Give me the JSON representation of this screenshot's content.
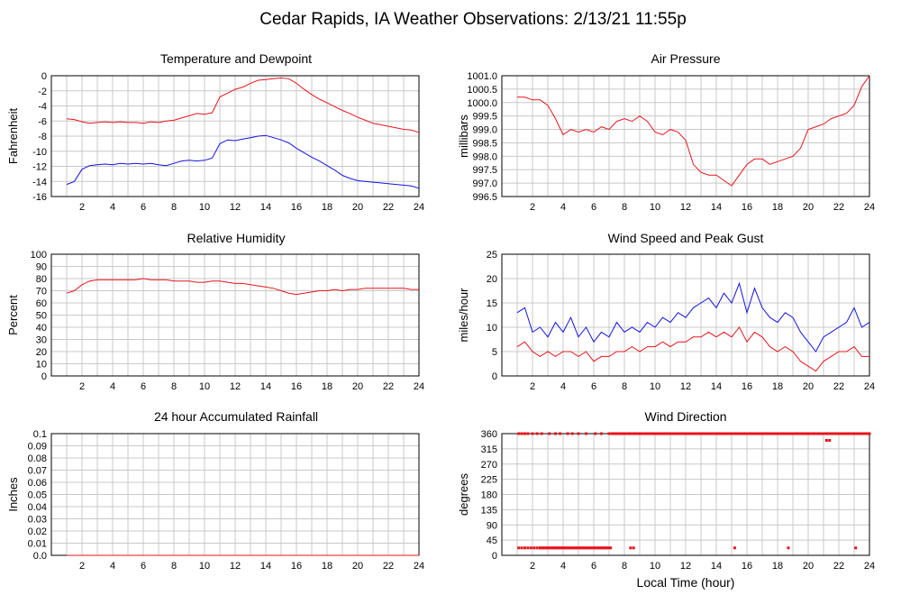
{
  "page": {
    "title": "Cedar Rapids, IA Weather Observations: 2/13/21 11:55p",
    "xlabel": "Local Time (hour)"
  },
  "colors": {
    "red": "#e8141c",
    "blue": "#1414e0"
  },
  "chart_data": [
    {
      "id": "temp",
      "type": "line",
      "title": "Temperature and Dewpoint",
      "ylabel": "Fahrenheit",
      "xlim": [
        0,
        24
      ],
      "ylim": [
        -16,
        0
      ],
      "xticks": [
        2,
        4,
        6,
        8,
        10,
        12,
        14,
        16,
        18,
        20,
        22,
        24
      ],
      "yticks": [
        -16,
        -14,
        -12,
        -10,
        -8,
        -6,
        -4,
        -2,
        0
      ],
      "grid": true,
      "series": [
        {
          "color": "red",
          "x": [
            1,
            1.5,
            2,
            2.5,
            3,
            3.5,
            4,
            4.5,
            5,
            5.5,
            6,
            6.5,
            7,
            7.5,
            8,
            8.5,
            9,
            9.5,
            10,
            10.5,
            11,
            11.5,
            12,
            12.5,
            13,
            13.5,
            14,
            14.5,
            15,
            15.5,
            16,
            16.5,
            17,
            17.5,
            18,
            18.5,
            19,
            19.5,
            20,
            20.5,
            21,
            21.5,
            22,
            22.5,
            23,
            23.5,
            24
          ],
          "y": [
            -5.7,
            -5.8,
            -6.1,
            -6.3,
            -6.2,
            -6.1,
            -6.2,
            -6.1,
            -6.2,
            -6.2,
            -6.3,
            -6.1,
            -6.2,
            -6.0,
            -5.9,
            -5.6,
            -5.3,
            -5.0,
            -5.1,
            -4.9,
            -2.8,
            -2.3,
            -1.8,
            -1.5,
            -1.0,
            -0.6,
            -0.5,
            -0.4,
            -0.3,
            -0.4,
            -1.0,
            -1.8,
            -2.5,
            -3.1,
            -3.6,
            -4.1,
            -4.6,
            -5.0,
            -5.5,
            -5.9,
            -6.3,
            -6.5,
            -6.7,
            -6.9,
            -7.1,
            -7.2,
            -7.5
          ]
        },
        {
          "color": "blue",
          "x": [
            1,
            1.5,
            2,
            2.5,
            3,
            3.5,
            4,
            4.5,
            5,
            5.5,
            6,
            6.5,
            7,
            7.5,
            8,
            8.5,
            9,
            9.5,
            10,
            10.5,
            11,
            11.5,
            12,
            12.5,
            13,
            13.5,
            14,
            14.5,
            15,
            15.5,
            16,
            16.5,
            17,
            17.5,
            18,
            18.5,
            19,
            19.5,
            20,
            20.5,
            21,
            21.5,
            22,
            22.5,
            23,
            23.5,
            24
          ],
          "y": [
            -14.4,
            -14.0,
            -12.4,
            -11.9,
            -11.8,
            -11.7,
            -11.8,
            -11.6,
            -11.7,
            -11.6,
            -11.7,
            -11.6,
            -11.8,
            -11.9,
            -11.6,
            -11.3,
            -11.2,
            -11.3,
            -11.2,
            -10.9,
            -9.0,
            -8.5,
            -8.6,
            -8.4,
            -8.2,
            -8.0,
            -7.9,
            -8.2,
            -8.5,
            -8.9,
            -9.6,
            -10.2,
            -10.8,
            -11.3,
            -11.9,
            -12.5,
            -13.2,
            -13.6,
            -13.9,
            -14.0,
            -14.1,
            -14.2,
            -14.3,
            -14.4,
            -14.5,
            -14.6,
            -14.9
          ]
        }
      ]
    },
    {
      "id": "pressure",
      "type": "line",
      "title": "Air Pressure",
      "ylabel": "millibars",
      "xlim": [
        0,
        24
      ],
      "ylim": [
        996.5,
        1001.0
      ],
      "xticks": [
        2,
        4,
        6,
        8,
        10,
        12,
        14,
        16,
        18,
        20,
        22,
        24
      ],
      "yticks": [
        "996.5",
        "997.0",
        "997.5",
        "998.0",
        "998.5",
        "999.0",
        "999.5",
        "1000.0",
        "1000.5",
        "1001.0"
      ],
      "grid": true,
      "series": [
        {
          "color": "red",
          "x": [
            1,
            1.5,
            2,
            2.5,
            3,
            3.5,
            4,
            4.5,
            5,
            5.5,
            6,
            6.5,
            7,
            7.5,
            8,
            8.5,
            9,
            9.5,
            10,
            10.5,
            11,
            11.5,
            12,
            12.5,
            13,
            13.5,
            14,
            14.5,
            15,
            15.5,
            16,
            16.5,
            17,
            17.5,
            18,
            18.5,
            19,
            19.5,
            20,
            20.5,
            21,
            21.5,
            22,
            22.5,
            23,
            23.5,
            24
          ],
          "y": [
            1000.2,
            1000.2,
            1000.1,
            1000.1,
            999.9,
            999.4,
            998.8,
            999.0,
            998.9,
            999.0,
            998.9,
            999.1,
            999.0,
            999.3,
            999.4,
            999.3,
            999.5,
            999.3,
            998.9,
            998.8,
            999.0,
            998.9,
            998.6,
            997.7,
            997.4,
            997.3,
            997.3,
            997.1,
            996.9,
            997.3,
            997.7,
            997.9,
            997.9,
            997.7,
            997.8,
            997.9,
            998.0,
            998.3,
            999.0,
            999.1,
            999.2,
            999.4,
            999.5,
            999.6,
            999.9,
            1000.6,
            1001.0
          ]
        }
      ]
    },
    {
      "id": "humidity",
      "type": "line",
      "title": "Relative Humidity",
      "ylabel": "Percent",
      "xlim": [
        0,
        24
      ],
      "ylim": [
        0,
        100
      ],
      "xticks": [
        2,
        4,
        6,
        8,
        10,
        12,
        14,
        16,
        18,
        20,
        22,
        24
      ],
      "yticks": [
        0,
        10,
        20,
        30,
        40,
        50,
        60,
        70,
        80,
        90,
        100
      ],
      "grid": true,
      "series": [
        {
          "color": "red",
          "x": [
            1,
            1.5,
            2,
            2.5,
            3,
            3.5,
            4,
            4.5,
            5,
            5.5,
            6,
            6.5,
            7,
            7.5,
            8,
            8.5,
            9,
            9.5,
            10,
            10.5,
            11,
            11.5,
            12,
            12.5,
            13,
            13.5,
            14,
            14.5,
            15,
            15.5,
            16,
            16.5,
            17,
            17.5,
            18,
            18.5,
            19,
            19.5,
            20,
            20.5,
            21,
            21.5,
            22,
            22.5,
            23,
            23.5,
            24
          ],
          "y": [
            68,
            70,
            75,
            78,
            79,
            79,
            79,
            79,
            79,
            79,
            80,
            79,
            79,
            79,
            78,
            78,
            78,
            77,
            77,
            78,
            78,
            77,
            76,
            76,
            75,
            74,
            73,
            72,
            70,
            68,
            67,
            68,
            69,
            70,
            70,
            71,
            70,
            71,
            71,
            72,
            72,
            72,
            72,
            72,
            72,
            71,
            71
          ]
        }
      ]
    },
    {
      "id": "wind",
      "type": "line",
      "title": "Wind Speed and Peak Gust",
      "ylabel": "miles/hour",
      "xlim": [
        0,
        24
      ],
      "ylim": [
        0,
        25
      ],
      "xticks": [
        2,
        4,
        6,
        8,
        10,
        12,
        14,
        16,
        18,
        20,
        22,
        24
      ],
      "yticks": [
        0,
        5,
        10,
        15,
        20,
        25
      ],
      "grid": true,
      "series": [
        {
          "color": "blue",
          "x": [
            1,
            1.5,
            2,
            2.5,
            3,
            3.5,
            4,
            4.5,
            5,
            5.5,
            6,
            6.5,
            7,
            7.5,
            8,
            8.5,
            9,
            9.5,
            10,
            10.5,
            11,
            11.5,
            12,
            12.5,
            13,
            13.5,
            14,
            14.5,
            15,
            15.5,
            16,
            16.5,
            17,
            17.5,
            18,
            18.5,
            19,
            19.5,
            20,
            20.5,
            21,
            21.5,
            22,
            22.5,
            23,
            23.5,
            24
          ],
          "y": [
            13,
            14,
            9,
            10,
            8,
            11,
            9,
            12,
            8,
            10,
            7,
            9,
            8,
            11,
            9,
            10,
            9,
            11,
            10,
            12,
            11,
            13,
            12,
            14,
            15,
            16,
            14,
            17,
            15,
            19,
            13,
            18,
            14,
            12,
            11,
            13,
            12,
            9,
            7,
            5,
            8,
            9,
            10,
            11,
            14,
            10,
            11
          ]
        },
        {
          "color": "red",
          "x": [
            1,
            1.5,
            2,
            2.5,
            3,
            3.5,
            4,
            4.5,
            5,
            5.5,
            6,
            6.5,
            7,
            7.5,
            8,
            8.5,
            9,
            9.5,
            10,
            10.5,
            11,
            11.5,
            12,
            12.5,
            13,
            13.5,
            14,
            14.5,
            15,
            15.5,
            16,
            16.5,
            17,
            17.5,
            18,
            18.5,
            19,
            19.5,
            20,
            20.5,
            21,
            21.5,
            22,
            22.5,
            23,
            23.5,
            24
          ],
          "y": [
            6,
            7,
            5,
            4,
            5,
            4,
            5,
            5,
            4,
            5,
            3,
            4,
            4,
            5,
            5,
            6,
            5,
            6,
            6,
            7,
            6,
            7,
            7,
            8,
            8,
            9,
            8,
            9,
            8,
            10,
            7,
            9,
            8,
            6,
            5,
            6,
            5,
            3,
            2,
            1,
            3,
            4,
            5,
            5,
            6,
            4,
            4
          ]
        }
      ]
    },
    {
      "id": "rain",
      "type": "line",
      "title": "24 hour Accumulated Rainfall",
      "ylabel": "Inches",
      "xlim": [
        0,
        24
      ],
      "ylim": [
        0,
        0.1
      ],
      "xticks": [
        2,
        4,
        6,
        8,
        10,
        12,
        14,
        16,
        18,
        20,
        22,
        24
      ],
      "yticks": [
        "0.0",
        "0.01",
        "0.02",
        "0.03",
        "0.04",
        "0.05",
        "0.06",
        "0.07",
        "0.08",
        "0.09",
        "0.1"
      ],
      "grid": true,
      "series": [
        {
          "color": "red",
          "x": [
            1,
            24
          ],
          "y": [
            0,
            0
          ]
        }
      ]
    },
    {
      "id": "direction",
      "type": "scatter",
      "title": "Wind Direction",
      "ylabel": "degrees",
      "xlim": [
        0,
        24
      ],
      "ylim": [
        0,
        360
      ],
      "xticks": [
        2,
        4,
        6,
        8,
        10,
        12,
        14,
        16,
        18,
        20,
        22,
        24
      ],
      "yticks": [
        0,
        45,
        90,
        135,
        180,
        225,
        270,
        315,
        360
      ],
      "grid": true,
      "series": [
        {
          "color": "red",
          "x": [
            1.1,
            1.3,
            1.5,
            1.7,
            2.0,
            2.3,
            2.6,
            3.1,
            3.5,
            3.8,
            4.3,
            4.6,
            5.0,
            5.5,
            6.1,
            6.5,
            7.0,
            7.4,
            8.0,
            8.5,
            9.0,
            9.5,
            10.0,
            10.5,
            11.0,
            11.5,
            12.0,
            12.5,
            13.0,
            13.5,
            14.0,
            14.5,
            15.0,
            15.5,
            16.0,
            16.5,
            17.0,
            17.5,
            18.0,
            18.5,
            19.0,
            19.5,
            20.0,
            20.5,
            21.0,
            21.5,
            22.0,
            22.5,
            23.0,
            23.5,
            24.0,
            21.2,
            21.4,
            1.1,
            1.3,
            1.5,
            1.7,
            1.9,
            2.1,
            2.3,
            2.5,
            2.7,
            2.9,
            3.1,
            3.3,
            3.5,
            3.7,
            3.9,
            4.1,
            4.3,
            4.5,
            4.7,
            4.9,
            5.1,
            5.3,
            5.5,
            5.7,
            5.9,
            6.1,
            6.3,
            6.5,
            6.7,
            6.9,
            7.1,
            8.4,
            8.6,
            15.2,
            18.7,
            23.1
          ],
          "y": [
            360,
            360,
            360,
            360,
            360,
            360,
            360,
            360,
            360,
            360,
            360,
            360,
            360,
            360,
            360,
            360,
            360,
            360,
            360,
            360,
            360,
            360,
            360,
            360,
            360,
            360,
            360,
            360,
            360,
            360,
            360,
            360,
            360,
            360,
            360,
            360,
            360,
            360,
            360,
            360,
            360,
            360,
            360,
            360,
            360,
            360,
            360,
            360,
            360,
            360,
            360,
            340,
            340,
            22,
            22,
            22,
            22,
            22,
            22,
            22,
            22,
            22,
            22,
            22,
            22,
            22,
            22,
            22,
            22,
            22,
            22,
            22,
            22,
            22,
            22,
            22,
            22,
            22,
            22,
            22,
            22,
            22,
            22,
            22,
            22,
            22,
            22,
            22,
            22
          ]
        }
      ]
    }
  ]
}
